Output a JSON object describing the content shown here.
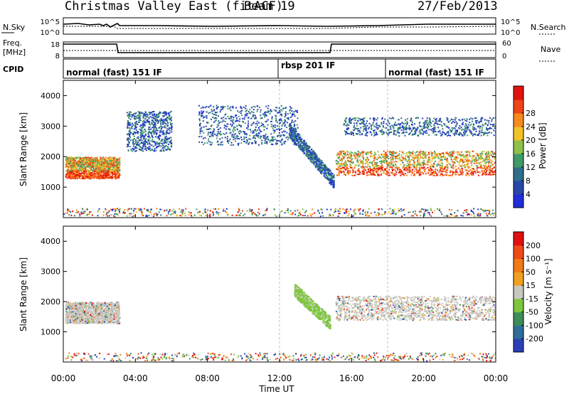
{
  "header": {
    "station": "Christmas Valley East (fitACF)",
    "beam": "Beam 19",
    "date": "27/Feb/2013"
  },
  "summary_panels": {
    "nsky": {
      "left_label": "N.Sky",
      "left_ticks": [
        "10^5",
        "10^0"
      ],
      "right_label": "N.Search",
      "right_ticks": [
        "10^5",
        "10^0"
      ]
    },
    "freq": {
      "left_label_line1": "Freq.",
      "left_label_line2": "[MHz]",
      "left_ticks": [
        "18",
        "8"
      ],
      "right_label": "Nave",
      "right_ticks": [
        "60",
        "0"
      ]
    },
    "cpid": {
      "label": "CPID",
      "segments": [
        "normal (fast) 151 IF",
        "rbsp 201 IF",
        "normal (fast) 151 IF"
      ]
    }
  },
  "x_axis": {
    "label": "Time UT",
    "ticks": [
      "00:00",
      "04:00",
      "08:00",
      "12:00",
      "16:00",
      "20:00",
      "00:00"
    ]
  },
  "chart_data": [
    {
      "type": "heatmap",
      "name": "power",
      "ylabel": "Slant Range [km]",
      "yticks": [
        1000,
        2000,
        3000,
        4000
      ],
      "ylim": [
        0,
        4500
      ],
      "xlim_hours": [
        0,
        24
      ],
      "colorbar": {
        "label": "Power [dB]",
        "ticks": [
          4,
          8,
          12,
          16,
          20,
          24,
          28
        ],
        "colors": [
          "#1f2ed8",
          "#2748a8",
          "#2f6d8a",
          "#3f9a68",
          "#8fc04a",
          "#f2c229",
          "#f78a1e",
          "#ee4418",
          "#e0130f"
        ]
      },
      "features": [
        {
          "desc": "strong band",
          "hours": [
            0.1,
            3.1
          ],
          "range_km": [
            1300,
            2000
          ]
        },
        {
          "desc": "strong band",
          "hours": [
            15.1,
            24
          ],
          "range_km": [
            1400,
            2200
          ]
        },
        {
          "desc": "scatter cluster",
          "hours": [
            3.5,
            6
          ],
          "range_km": [
            2200,
            3500
          ]
        },
        {
          "desc": "scatter cluster",
          "hours": [
            7.5,
            13
          ],
          "range_km": [
            2400,
            3700
          ]
        },
        {
          "desc": "descending trail",
          "hours": [
            12.5,
            15
          ],
          "range_km": [
            1200,
            2900
          ]
        },
        {
          "desc": "upper band",
          "hours": [
            15.5,
            24
          ],
          "range_km": [
            2700,
            3300
          ]
        }
      ]
    },
    {
      "type": "heatmap",
      "name": "velocity",
      "ylabel": "Slant Range [km]",
      "yticks": [
        1000,
        2000,
        3000,
        4000
      ],
      "ylim": [
        0,
        4500
      ],
      "xlim_hours": [
        0,
        24
      ],
      "colorbar": {
        "label": "Velocity [m s⁻¹]",
        "ticks": [
          200,
          100,
          50,
          15,
          -15,
          -50,
          -100,
          -200
        ],
        "colors": [
          "#2a3fb8",
          "#2f6d9a",
          "#3e8c5a",
          "#7dc63d",
          "#c8c8c0",
          "#f0a020",
          "#f07a18",
          "#f04a18",
          "#e01010"
        ]
      },
      "features": [
        {
          "desc": "grey low-velocity band",
          "hours": [
            0.1,
            3.1
          ],
          "range_km": [
            1300,
            2000
          ]
        },
        {
          "desc": "grey low-velocity band",
          "hours": [
            15.1,
            24
          ],
          "range_km": [
            1400,
            2200
          ]
        },
        {
          "desc": "green descending trail",
          "hours": [
            12.8,
            14.8
          ],
          "range_km": [
            1300,
            2400
          ]
        }
      ]
    }
  ]
}
